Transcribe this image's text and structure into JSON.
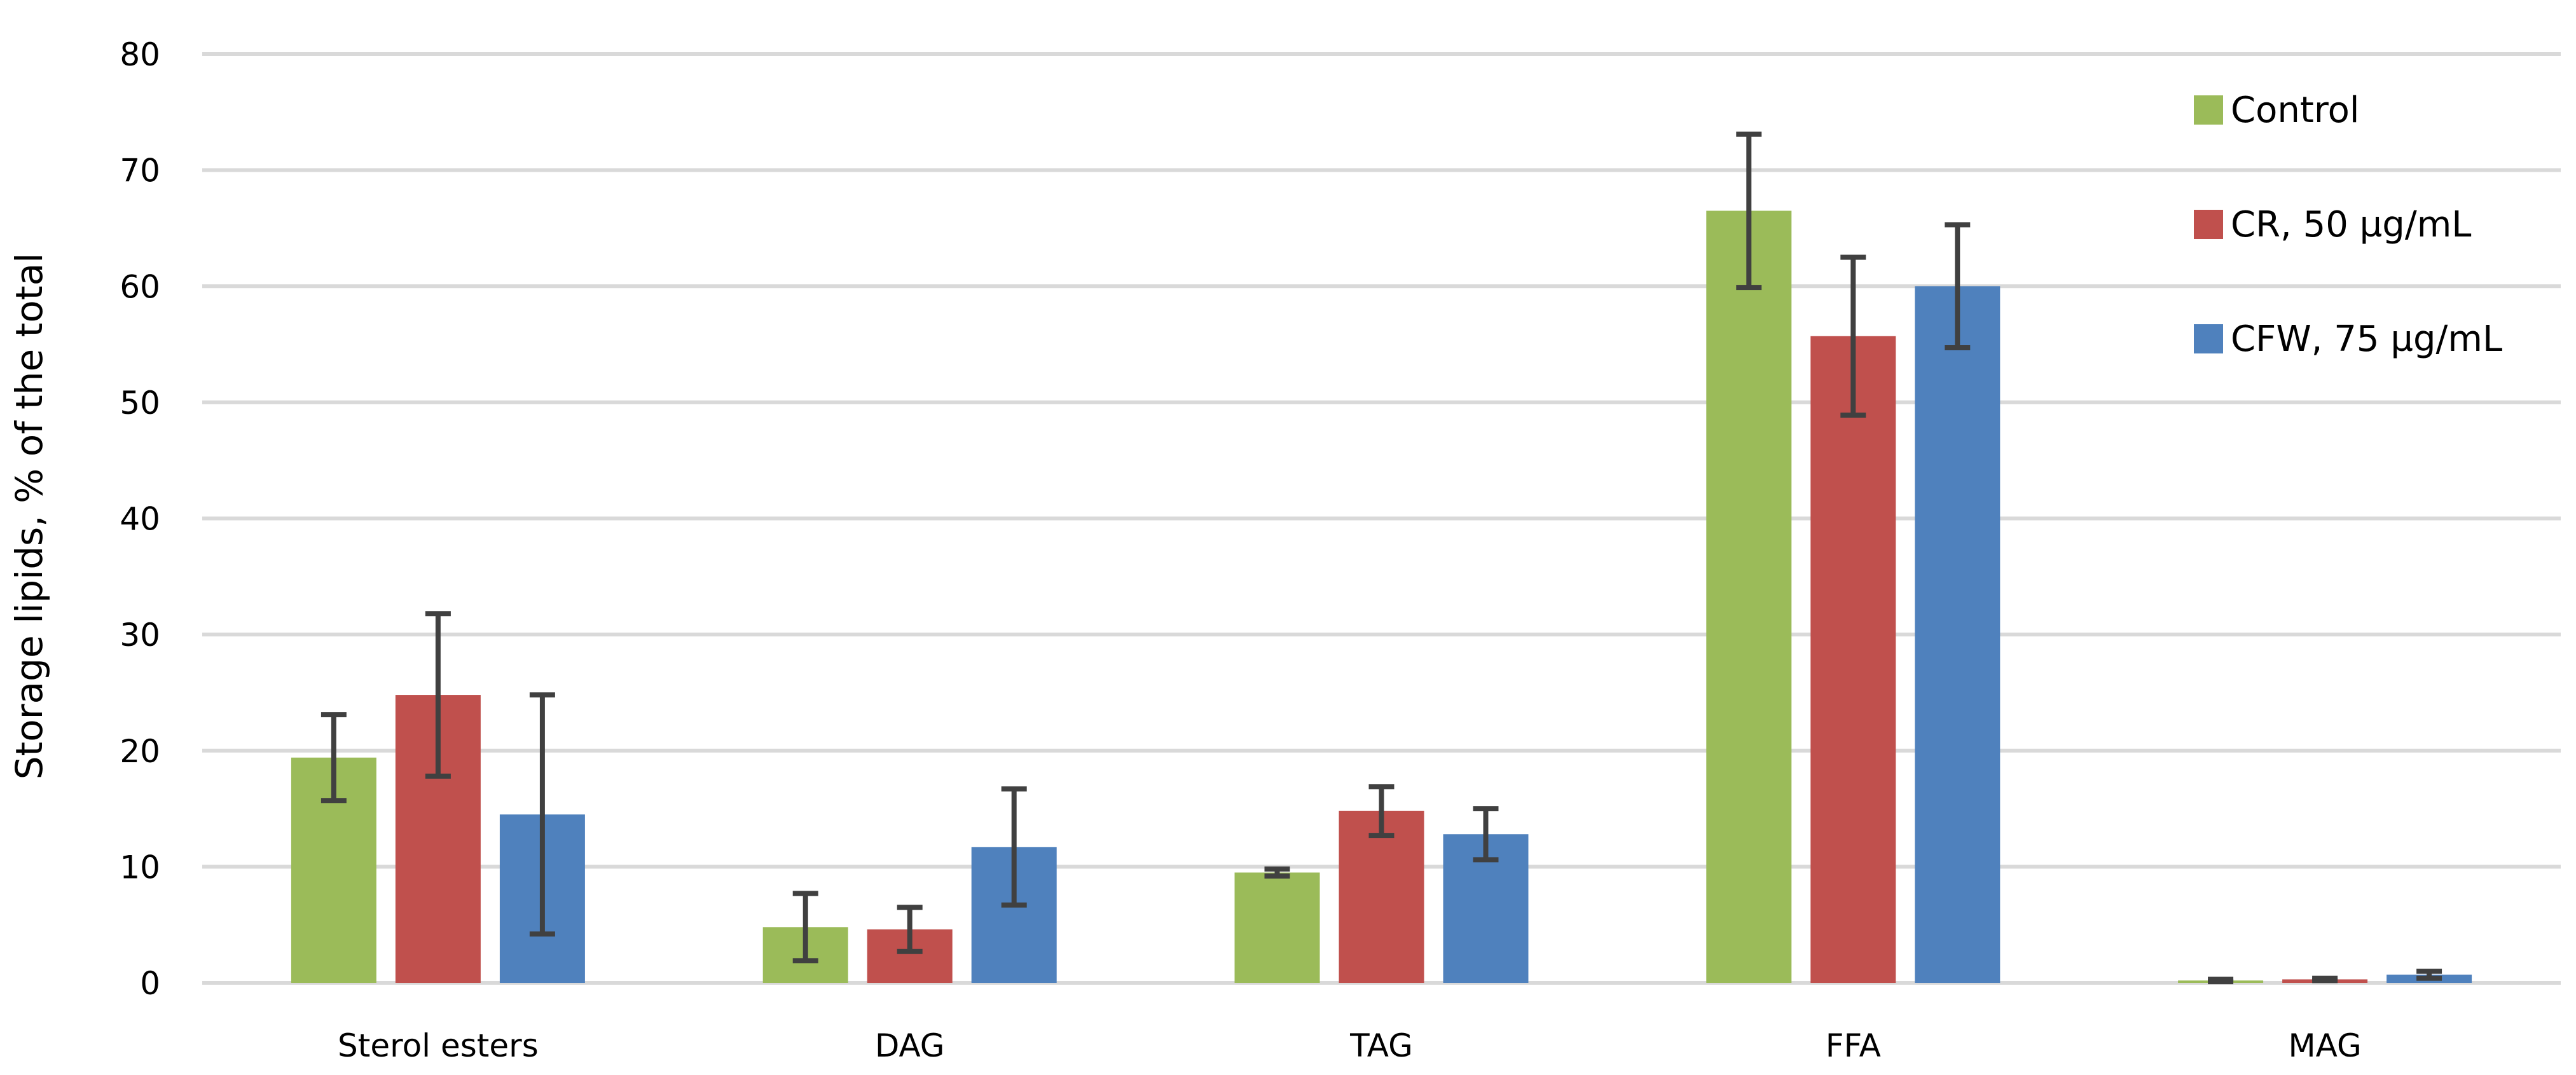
{
  "chart_data": {
    "type": "bar",
    "title": "",
    "xlabel": "",
    "ylabel": "Storage lipids, % of the total",
    "ylim": [
      0,
      80
    ],
    "yticks": [
      0,
      10,
      20,
      30,
      40,
      50,
      60,
      70,
      80
    ],
    "grid": true,
    "legend_position": "top-right",
    "categories": [
      "Sterol esters",
      "DAG",
      "TAG",
      "FFA",
      "MAG"
    ],
    "series": [
      {
        "name": "Control",
        "color": "#9bbb59",
        "values": [
          19.4,
          4.8,
          9.5,
          66.5,
          0.2
        ],
        "errors": [
          3.7,
          2.9,
          0.3,
          6.6,
          0.1
        ]
      },
      {
        "name": "CR, 50 µg/mL",
        "color": "#c0504d",
        "values": [
          24.8,
          4.6,
          14.8,
          55.7,
          0.3
        ],
        "errors": [
          7.0,
          1.9,
          2.1,
          6.8,
          0.1
        ]
      },
      {
        "name": "CFW, 75 µg/mL",
        "color": "#4f81bd",
        "values": [
          14.5,
          11.7,
          12.8,
          60.0,
          0.7
        ],
        "errors": [
          10.3,
          5.0,
          2.2,
          5.3,
          0.3
        ]
      }
    ]
  }
}
